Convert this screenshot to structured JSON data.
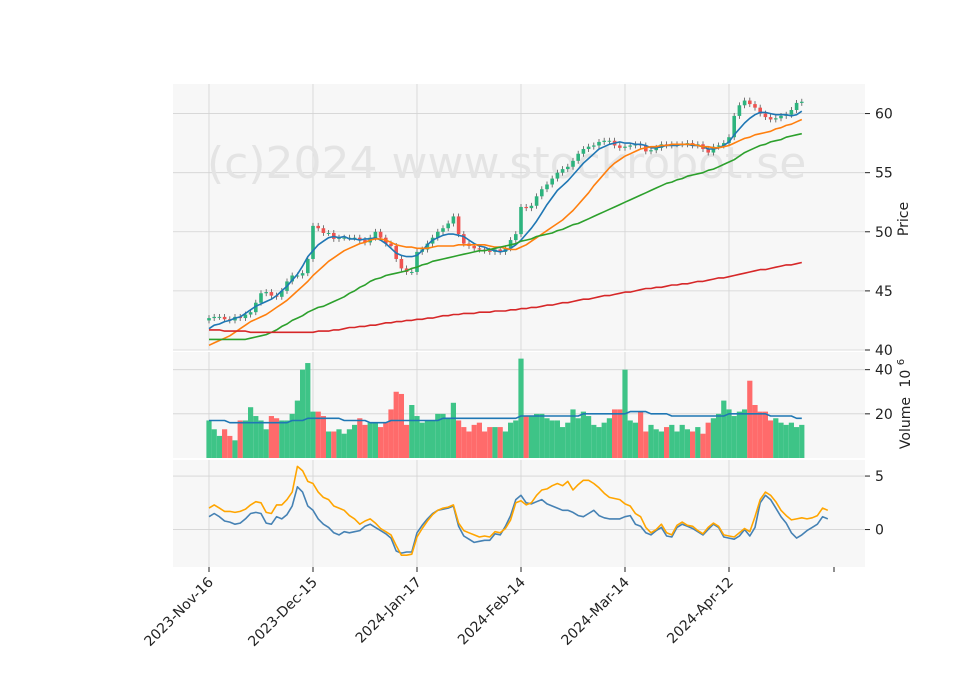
{
  "chart_data": {
    "type": "candlestick",
    "watermark": "(c)2024 www.stockrobot.se",
    "xlabel": "",
    "xticks": [
      "2023-Nov-16",
      "2023-Dec-15",
      "2024-Jan-17",
      "2024-Feb-14",
      "2024-Mar-14",
      "2024-Apr-12"
    ],
    "xtick_index": [
      0,
      20,
      40,
      60,
      80,
      100
    ],
    "price_panel": {
      "ylabel": "Price",
      "ylim": [
        40,
        62.5
      ],
      "yticks": [
        "40",
        "45",
        "50",
        "55",
        "60"
      ],
      "ytick_values": [
        40,
        45,
        50,
        55,
        60
      ],
      "closes": [
        42.7,
        42.8,
        42.8,
        42.6,
        42.5,
        42.8,
        42.7,
        43.0,
        43.2,
        44.0,
        44.8,
        44.9,
        44.6,
        44.5,
        45.0,
        45.8,
        46.3,
        46.3,
        46.5,
        47.7,
        50.5,
        50.3,
        49.9,
        49.9,
        49.4,
        49.5,
        49.5,
        49.5,
        49.5,
        49.3,
        49.1,
        49.5,
        50.0,
        49.5,
        49.0,
        48.8,
        47.7,
        46.9,
        46.6,
        46.6,
        48.3,
        48.5,
        49.0,
        49.5,
        50.0,
        50.3,
        50.7,
        51.3,
        49.8,
        49.0,
        48.8,
        48.6,
        48.5,
        48.4,
        48.3,
        48.5,
        48.3,
        48.6,
        49.3,
        49.8,
        52.1,
        52.0,
        52.2,
        53.0,
        53.6,
        54.0,
        54.5,
        55.0,
        55.3,
        55.5,
        56.0,
        56.6,
        57.0,
        57.2,
        57.3,
        57.6,
        57.7,
        57.7,
        57.3,
        57.1,
        57.2,
        57.3,
        57.4,
        57.3,
        56.8,
        56.9,
        57.1,
        57.4,
        57.3,
        57.4,
        57.4,
        57.4,
        57.5,
        57.3,
        57.4,
        57.0,
        56.7,
        57.2,
        57.3,
        57.5,
        58.0,
        59.8,
        60.7,
        61.1,
        60.8,
        60.5,
        60.0,
        59.7,
        59.5,
        59.6,
        59.8,
        59.9,
        60.3,
        60.9,
        61.0
      ],
      "ma_lines": [
        {
          "color": "#1f77b4",
          "values": [
            41.8,
            42.1,
            42.2,
            42.4,
            42.5,
            42.7,
            42.8,
            43.1,
            43.4,
            43.7,
            43.9,
            44.1,
            44.3,
            44.6,
            45.0,
            45.4,
            45.9,
            46.4,
            47.1,
            47.9,
            48.4,
            48.9,
            49.2,
            49.5,
            49.6,
            49.5,
            49.6,
            49.4,
            49.4,
            49.3,
            49.4,
            49.4,
            49.5,
            49.3,
            49.0,
            48.6,
            48.2,
            48.0,
            47.9,
            47.9,
            48.0,
            48.4,
            48.9,
            49.3,
            49.5,
            49.7,
            49.8,
            49.8,
            49.7,
            49.6,
            49.3,
            49.0,
            48.8,
            48.7,
            48.5,
            48.4,
            48.3,
            48.4,
            48.6,
            48.9,
            49.3,
            49.8,
            50.3,
            50.9,
            51.6,
            52.3,
            52.9,
            53.5,
            53.9,
            54.3,
            54.8,
            55.3,
            55.8,
            56.2,
            56.6,
            57.0,
            57.2,
            57.4,
            57.5,
            57.6,
            57.5,
            57.5,
            57.4,
            57.4,
            57.3,
            57.1,
            57.1,
            57.2,
            57.3,
            57.3,
            57.3,
            57.4,
            57.4,
            57.3,
            57.3,
            57.2,
            57.0,
            57.0,
            57.1,
            57.3,
            57.6,
            58.2,
            58.7,
            59.2,
            59.6,
            59.9,
            60.1,
            60.1,
            60.0,
            59.9,
            59.9,
            59.9,
            59.8,
            59.9,
            60.2
          ]
        },
        {
          "color": "#ff7f0e",
          "values": [
            40.4,
            40.6,
            40.8,
            41.0,
            41.2,
            41.5,
            41.8,
            42.1,
            42.4,
            42.6,
            42.8,
            43.0,
            43.3,
            43.6,
            43.9,
            44.2,
            44.6,
            45.0,
            45.4,
            45.8,
            46.3,
            46.7,
            47.1,
            47.5,
            47.8,
            48.1,
            48.4,
            48.6,
            48.8,
            49.0,
            49.1,
            49.3,
            49.4,
            49.4,
            49.3,
            49.1,
            48.9,
            48.8,
            48.7,
            48.7,
            48.6,
            48.6,
            48.6,
            48.7,
            48.8,
            48.8,
            48.8,
            48.8,
            48.9,
            48.9,
            48.9,
            48.9,
            48.9,
            48.9,
            48.8,
            48.7,
            48.7,
            48.6,
            48.5,
            48.5,
            48.7,
            48.9,
            49.2,
            49.5,
            49.8,
            50.1,
            50.4,
            50.7,
            51.0,
            51.4,
            51.8,
            52.3,
            52.8,
            53.3,
            53.9,
            54.4,
            54.9,
            55.4,
            55.8,
            56.1,
            56.4,
            56.6,
            56.8,
            57.0,
            57.1,
            57.2,
            57.2,
            57.3,
            57.3,
            57.4,
            57.4,
            57.4,
            57.4,
            57.4,
            57.3,
            57.2,
            57.2,
            57.1,
            57.1,
            57.2,
            57.3,
            57.5,
            57.7,
            57.9,
            58.0,
            58.2,
            58.3,
            58.4,
            58.5,
            58.7,
            58.8,
            59.0,
            59.1,
            59.3,
            59.5
          ]
        },
        {
          "color": "#2ca02c",
          "values": [
            40.9,
            40.9,
            40.9,
            40.9,
            40.9,
            40.9,
            40.9,
            40.9,
            41.0,
            41.1,
            41.2,
            41.3,
            41.5,
            41.7,
            42.0,
            42.2,
            42.5,
            42.7,
            42.9,
            43.2,
            43.4,
            43.6,
            43.7,
            43.9,
            44.1,
            44.3,
            44.5,
            44.8,
            45.0,
            45.3,
            45.5,
            45.8,
            46.0,
            46.1,
            46.3,
            46.4,
            46.5,
            46.6,
            46.7,
            46.9,
            47.0,
            47.2,
            47.3,
            47.5,
            47.6,
            47.7,
            47.8,
            47.9,
            48.0,
            48.1,
            48.2,
            48.3,
            48.4,
            48.4,
            48.5,
            48.6,
            48.7,
            48.8,
            48.9,
            49.0,
            49.2,
            49.3,
            49.4,
            49.6,
            49.7,
            49.8,
            49.9,
            50.1,
            50.2,
            50.4,
            50.6,
            50.7,
            50.9,
            51.1,
            51.3,
            51.5,
            51.7,
            51.9,
            52.1,
            52.3,
            52.5,
            52.7,
            52.9,
            53.1,
            53.3,
            53.5,
            53.7,
            53.9,
            54.1,
            54.2,
            54.4,
            54.5,
            54.7,
            54.8,
            54.9,
            55.0,
            55.2,
            55.3,
            55.5,
            55.7,
            55.9,
            56.1,
            56.4,
            56.7,
            56.9,
            57.1,
            57.3,
            57.4,
            57.6,
            57.7,
            57.8,
            58.0,
            58.1,
            58.2,
            58.3
          ]
        },
        {
          "color": "#d62728",
          "values": [
            41.7,
            41.7,
            41.7,
            41.6,
            41.6,
            41.6,
            41.6,
            41.6,
            41.5,
            41.5,
            41.5,
            41.5,
            41.5,
            41.5,
            41.5,
            41.5,
            41.5,
            41.5,
            41.5,
            41.5,
            41.5,
            41.6,
            41.6,
            41.6,
            41.7,
            41.7,
            41.8,
            41.9,
            41.9,
            42.0,
            42.0,
            42.1,
            42.1,
            42.2,
            42.3,
            42.3,
            42.4,
            42.4,
            42.5,
            42.5,
            42.6,
            42.6,
            42.7,
            42.7,
            42.8,
            42.9,
            42.9,
            43.0,
            43.0,
            43.1,
            43.1,
            43.1,
            43.2,
            43.2,
            43.2,
            43.3,
            43.3,
            43.3,
            43.4,
            43.4,
            43.5,
            43.5,
            43.6,
            43.6,
            43.7,
            43.8,
            43.8,
            43.9,
            44.0,
            44.0,
            44.1,
            44.2,
            44.3,
            44.3,
            44.4,
            44.5,
            44.6,
            44.6,
            44.7,
            44.8,
            44.9,
            44.9,
            45.0,
            45.1,
            45.2,
            45.2,
            45.3,
            45.3,
            45.4,
            45.5,
            45.5,
            45.6,
            45.6,
            45.7,
            45.8,
            45.8,
            45.9,
            46.0,
            46.1,
            46.1,
            46.2,
            46.3,
            46.4,
            46.5,
            46.6,
            46.7,
            46.8,
            46.8,
            46.9,
            47.0,
            47.1,
            47.2,
            47.2,
            47.3,
            47.4
          ]
        }
      ]
    },
    "volume_panel": {
      "ylabel": "Volume",
      "ylabel_exponent": "10",
      "ylabel_exponent_power": "6",
      "ylim": [
        0,
        48
      ],
      "yticks": [
        "20",
        "40"
      ],
      "ytick_values": [
        20,
        40
      ],
      "volumes": [
        17,
        13,
        10,
        13,
        10,
        8,
        17,
        17,
        23,
        19,
        17,
        13,
        19,
        18,
        17,
        17,
        20,
        26,
        40,
        43,
        21,
        21,
        19,
        12,
        12,
        13,
        11,
        13,
        15,
        18,
        15,
        16,
        16,
        14,
        16,
        22,
        30,
        29,
        15,
        24,
        19,
        16,
        17,
        17,
        20,
        20,
        18,
        25,
        17,
        14,
        12,
        15,
        16,
        12,
        14,
        14,
        14,
        12,
        16,
        17,
        45,
        19,
        19,
        20,
        20,
        18,
        17,
        17,
        14,
        16,
        22,
        18,
        21,
        19,
        15,
        14,
        16,
        18,
        22,
        22,
        40,
        17,
        16,
        21,
        12,
        15,
        13,
        12,
        14,
        15,
        12,
        15,
        13,
        12,
        14,
        11,
        16,
        18,
        20,
        26,
        22,
        19,
        21,
        22,
        35,
        24,
        21,
        21,
        17,
        18,
        16,
        15,
        16,
        14,
        15
      ],
      "vol_ma": [
        17,
        17,
        17,
        17,
        16,
        16,
        16,
        16,
        16,
        16,
        16,
        16,
        16,
        16,
        16,
        16,
        17,
        17,
        17,
        18,
        18,
        18,
        18,
        18,
        18,
        18,
        17,
        17,
        17,
        17,
        17,
        16,
        16,
        16,
        16,
        17,
        17,
        17,
        17,
        17,
        17,
        17,
        17,
        17,
        17,
        18,
        18,
        18,
        18,
        18,
        18,
        18,
        18,
        18,
        18,
        18,
        18,
        18,
        18,
        18,
        19,
        19,
        19,
        19,
        19,
        19,
        19,
        19,
        19,
        19,
        19,
        19,
        20,
        20,
        20,
        20,
        20,
        20,
        20,
        20,
        20,
        21,
        21,
        21,
        21,
        20,
        20,
        20,
        20,
        19,
        19,
        19,
        19,
        19,
        19,
        19,
        19,
        19,
        19,
        19,
        20,
        20,
        20,
        20,
        20,
        20,
        20,
        20,
        19,
        19,
        19,
        19,
        19,
        18,
        18
      ]
    },
    "oscillator_panel": {
      "ylim": [
        -3.5,
        6.5
      ],
      "yticks": [
        "0",
        "5"
      ],
      "ytick_values": [
        0,
        5
      ],
      "series": [
        {
          "color": "#4682b4",
          "values": [
            1.2,
            1.5,
            1.2,
            0.8,
            0.7,
            0.5,
            0.6,
            1.0,
            1.5,
            1.6,
            1.5,
            0.6,
            0.5,
            1.2,
            1.0,
            1.4,
            2.2,
            4.0,
            3.5,
            2.2,
            1.8,
            1.0,
            0.5,
            0.2,
            -0.3,
            -0.5,
            -0.2,
            -0.3,
            -0.2,
            -0.1,
            0.3,
            0.5,
            0.2,
            -0.1,
            -0.4,
            -0.8,
            -2.0,
            -2.2,
            -2.1,
            -2.1,
            -0.3,
            0.4,
            1.0,
            1.5,
            1.8,
            1.9,
            2.0,
            2.2,
            0.3,
            -0.6,
            -0.9,
            -1.2,
            -1.1,
            -1.0,
            -1.0,
            -0.4,
            -0.5,
            0.3,
            1.3,
            2.8,
            3.2,
            2.5,
            2.4,
            2.6,
            2.8,
            2.4,
            2.2,
            2.0,
            1.8,
            1.8,
            1.6,
            1.3,
            1.2,
            1.5,
            1.8,
            1.3,
            1.1,
            1.0,
            1.0,
            1.0,
            1.2,
            1.3,
            0.5,
            0.3,
            -0.3,
            -0.5,
            -0.1,
            0.2,
            -0.6,
            -0.7,
            0.2,
            0.5,
            0.3,
            0.1,
            -0.2,
            -0.5,
            0.0,
            0.5,
            0.2,
            -0.7,
            -0.8,
            -0.9,
            -0.6,
            0.0,
            -0.6,
            0.2,
            2.5,
            3.2,
            2.8,
            2.0,
            1.2,
            0.6,
            -0.3,
            -0.8,
            -0.5,
            -0.1,
            0.2,
            0.5,
            1.2,
            1.0
          ]
        },
        {
          "color": "#ffa500",
          "values": [
            2.0,
            2.3,
            2.0,
            1.7,
            1.7,
            1.6,
            1.7,
            1.9,
            2.3,
            2.6,
            2.5,
            1.6,
            1.5,
            2.3,
            2.3,
            2.8,
            3.5,
            5.9,
            5.5,
            4.5,
            4.3,
            3.5,
            3.0,
            2.8,
            2.2,
            2.0,
            1.8,
            1.3,
            1.0,
            0.5,
            0.8,
            1.0,
            0.6,
            0.1,
            -0.2,
            -0.5,
            -1.5,
            -2.4,
            -2.4,
            -2.3,
            -0.7,
            0.1,
            0.8,
            1.4,
            1.8,
            2.0,
            2.1,
            2.3,
            0.6,
            -0.1,
            -0.3,
            -0.5,
            -0.7,
            -0.6,
            -0.7,
            -0.2,
            -0.3,
            0.1,
            0.9,
            2.5,
            2.7,
            2.3,
            2.5,
            3.2,
            3.7,
            3.8,
            4.1,
            4.3,
            4.1,
            4.5,
            3.7,
            4.2,
            4.6,
            4.6,
            4.3,
            3.9,
            3.4,
            3.0,
            2.9,
            2.8,
            2.4,
            2.2,
            1.5,
            1.2,
            0.2,
            -0.3,
            0.0,
            0.5,
            -0.3,
            -0.5,
            0.4,
            0.7,
            0.4,
            0.3,
            -0.1,
            -0.4,
            0.2,
            0.6,
            0.3,
            -0.5,
            -0.6,
            -0.7,
            -0.3,
            0.1,
            -0.2,
            1.2,
            2.8,
            3.5,
            3.2,
            2.6,
            1.8,
            1.3,
            0.9,
            1.0,
            1.1,
            1.0,
            1.1,
            1.3,
            2.0,
            1.8
          ]
        }
      ]
    },
    "colors": {
      "up": "#26a69a",
      "up_candle": "#2db37e",
      "down_candle": "#ef5350",
      "up_volume": "#3ec487",
      "down_volume": "#ff6b6b",
      "vol_ma": "#1f77b4",
      "panel_bg": "#f7f7f7",
      "grid": "#d3d3d3"
    }
  }
}
